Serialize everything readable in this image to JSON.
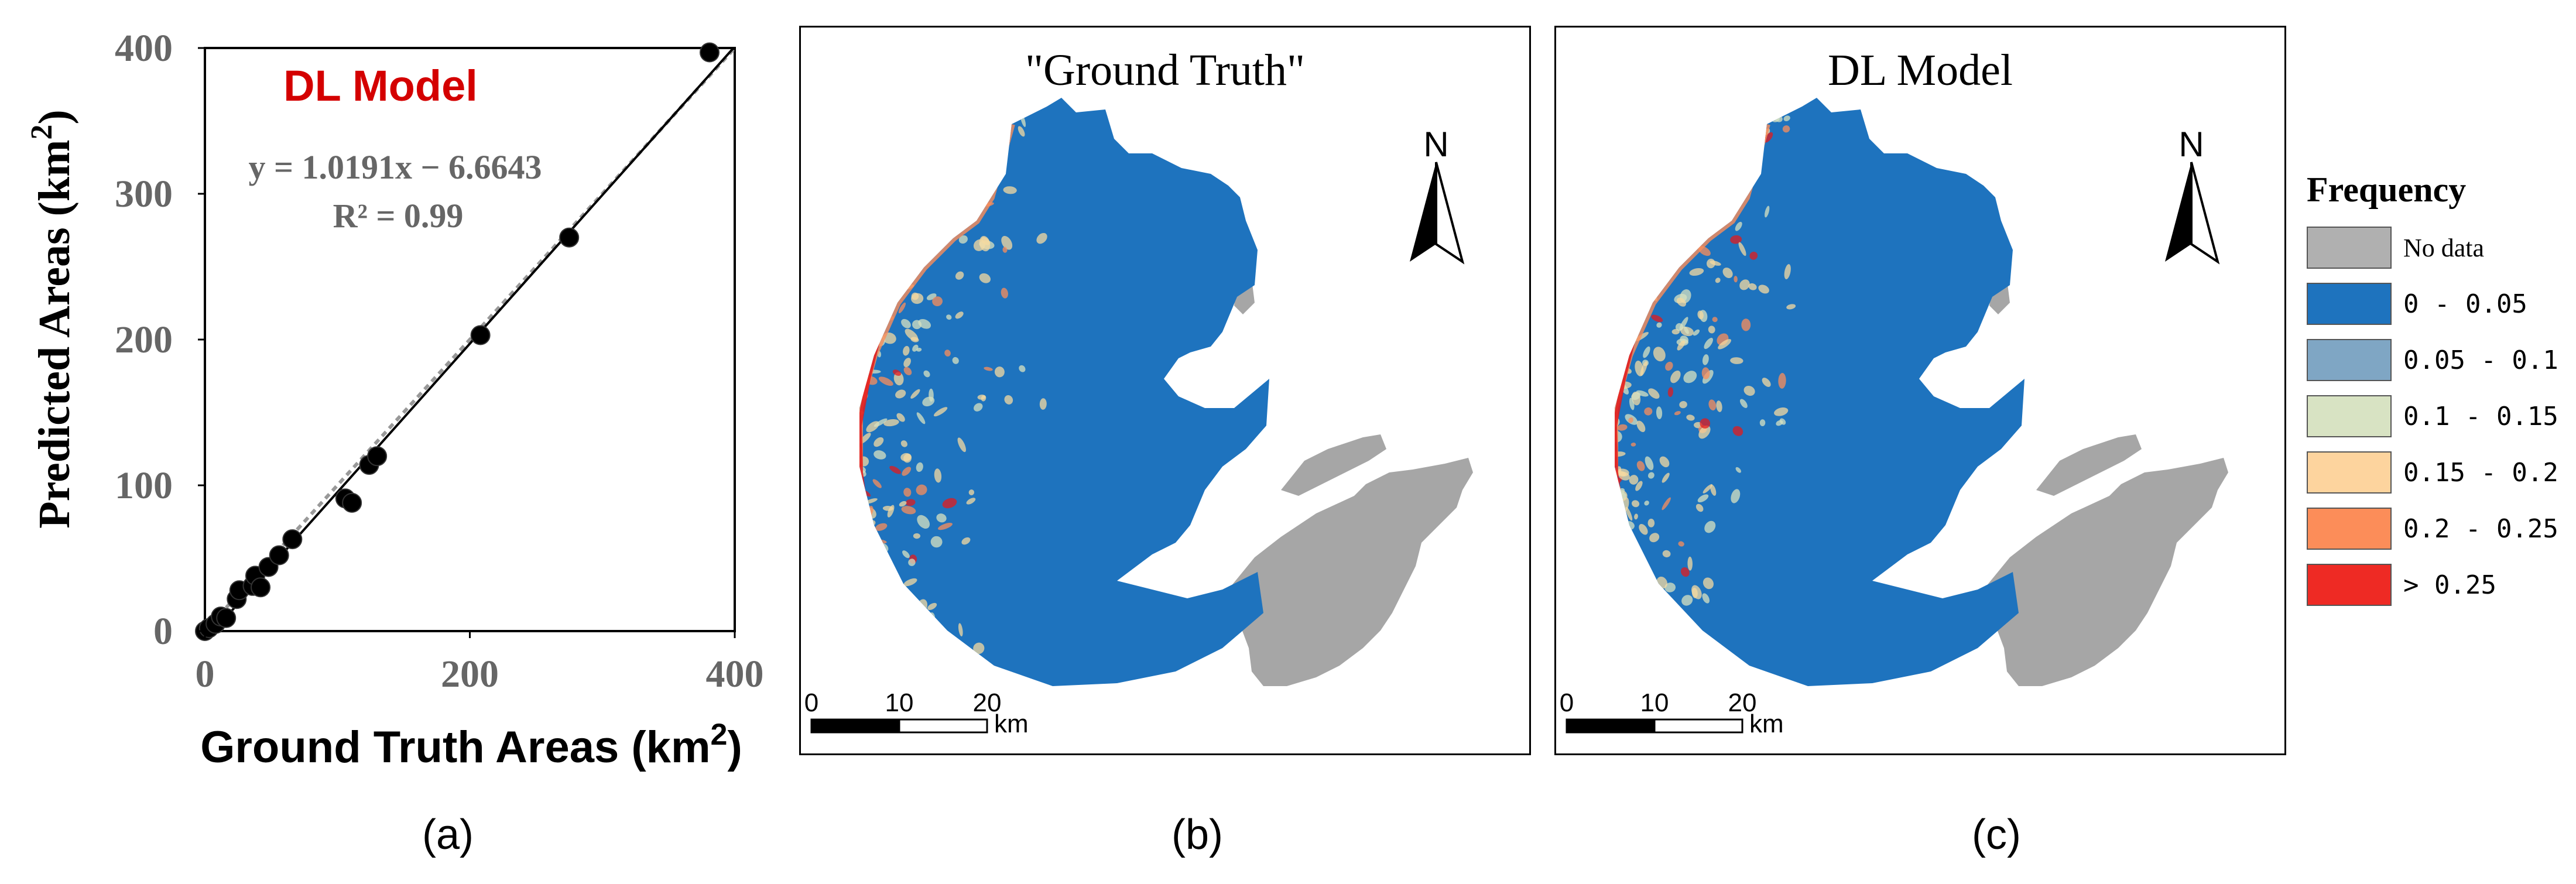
{
  "chart_data": [
    {
      "type": "scatter",
      "panel_label": "(a)",
      "annotation_title": "DL Model",
      "equation": "y = 1.0191x − 6.6643",
      "r_squared": "R² = 0.99",
      "xlabel_main": "Ground Truth Areas (km",
      "xlabel_sup": "2",
      "xlabel_end": ")",
      "ylabel_main": "Predicted Areas (km",
      "ylabel_sup": "2",
      "ylabel_end": ")",
      "xlim": [
        0,
        400
      ],
      "ylim": [
        0,
        400
      ],
      "xticks": [
        0,
        200,
        400
      ],
      "yticks": [
        0,
        100,
        200,
        300,
        400
      ],
      "points": [
        {
          "x": 0,
          "y": 0
        },
        {
          "x": 3,
          "y": 2
        },
        {
          "x": 8,
          "y": 5
        },
        {
          "x": 12,
          "y": 10
        },
        {
          "x": 16,
          "y": 9
        },
        {
          "x": 24,
          "y": 22
        },
        {
          "x": 26,
          "y": 28
        },
        {
          "x": 36,
          "y": 31
        },
        {
          "x": 38,
          "y": 38
        },
        {
          "x": 42,
          "y": 30
        },
        {
          "x": 48,
          "y": 44
        },
        {
          "x": 56,
          "y": 52
        },
        {
          "x": 66,
          "y": 63
        },
        {
          "x": 106,
          "y": 91
        },
        {
          "x": 111,
          "y": 88
        },
        {
          "x": 124,
          "y": 114
        },
        {
          "x": 130,
          "y": 120
        },
        {
          "x": 208,
          "y": 203
        },
        {
          "x": 275,
          "y": 270
        },
        {
          "x": 381,
          "y": 397
        }
      ],
      "fit_line": {
        "slope": 1.0191,
        "intercept": -6.6643
      },
      "identity_line": true,
      "grid": false,
      "colors": {
        "annotation_title": "#d40000",
        "equation": "#666666",
        "points": "#000000",
        "fit": "#000000",
        "identity": "#999999"
      }
    }
  ],
  "maps": [
    {
      "id": "b",
      "title": "\"Ground Truth\"",
      "panel_label": "(b)"
    },
    {
      "id": "c",
      "title": "DL Model",
      "panel_label": "(c)"
    }
  ],
  "map_common": {
    "north_label": "N",
    "scale_ticks": [
      "0",
      "10",
      "20"
    ],
    "scale_unit": "km",
    "colors": {
      "lake": "#1e73be",
      "nodata": "#a6a6a6",
      "mid": "#f5d9a0",
      "light": "#d8e2c0",
      "orange": "#fc8d59",
      "red": "#e31a1c"
    }
  },
  "legend": {
    "title": "Frequency",
    "items": [
      {
        "label": "No data",
        "color": "#b0b0b0"
      },
      {
        "label": "0 - 0.05",
        "color": "#1e73be"
      },
      {
        "label": "0.05 - 0.1",
        "color": "#7fa6c4"
      },
      {
        "label": "0.1 - 0.15",
        "color": "#d8e3c3"
      },
      {
        "label": "0.15 - 0.2",
        "color": "#fdd49e"
      },
      {
        "label": "0.2 - 0.25",
        "color": "#fc8d59"
      },
      {
        "label": "> 0.25",
        "color": "#ee2a24"
      }
    ]
  }
}
